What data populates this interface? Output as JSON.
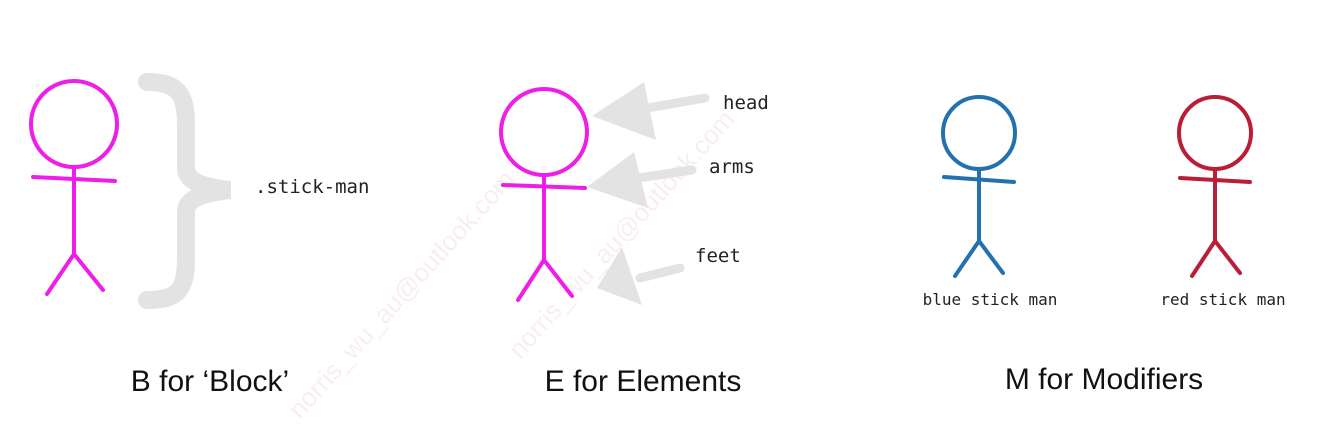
{
  "colors": {
    "magenta": "#ee1ee8",
    "blue": "#2371ae",
    "red": "#b81f37",
    "arrow_gray": "#e3e3e3"
  },
  "block": {
    "label": ".stick-man",
    "caption": "B for ‘Block’"
  },
  "elements": {
    "labels": {
      "head": "head",
      "arms": "arms",
      "feet": "feet"
    },
    "caption": "E for Elements"
  },
  "modifiers": {
    "blue_label": "blue stick man",
    "red_label": "red stick man",
    "caption": "M for Modifiers"
  },
  "watermark": "norris_wu_au@outlook.com"
}
